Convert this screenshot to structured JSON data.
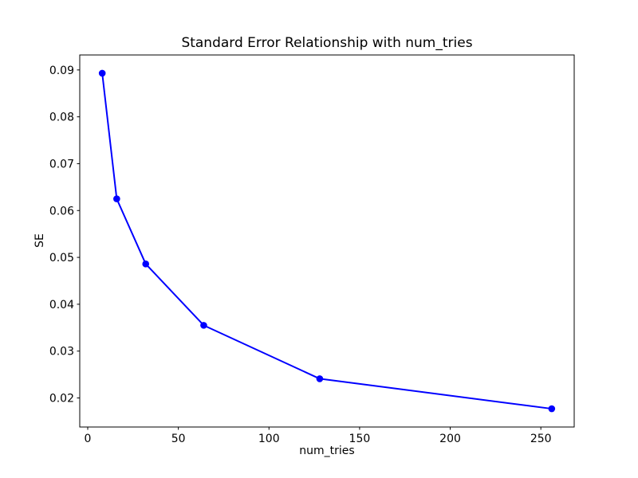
{
  "window": {
    "background": "#ffffff"
  },
  "chart_data": {
    "type": "line",
    "title": "Standard Error Relationship with num_tries",
    "xlabel": "num_tries",
    "ylabel": "SE",
    "x": [
      8,
      16,
      32,
      64,
      128,
      256
    ],
    "series": [
      {
        "name": "SE",
        "values": [
          0.0893,
          0.0625,
          0.0486,
          0.0355,
          0.0241,
          0.0177
        ],
        "color": "#0000ff",
        "marker": "circle",
        "marker_radius": 4.3,
        "line_width": 2
      }
    ],
    "xlim": [
      -4.4,
      268.4
    ],
    "ylim": [
      0.0138,
      0.0932
    ],
    "x_ticks": [
      0,
      50,
      100,
      150,
      200,
      250
    ],
    "y_ticks": [
      0.02,
      0.03,
      0.04,
      0.05,
      0.06,
      0.07,
      0.08,
      0.09
    ],
    "y_tick_decimals": 2,
    "grid": false,
    "legend": "none",
    "axis_color": "#000000",
    "text_color": "#000000",
    "plot_background": "#ffffff"
  }
}
